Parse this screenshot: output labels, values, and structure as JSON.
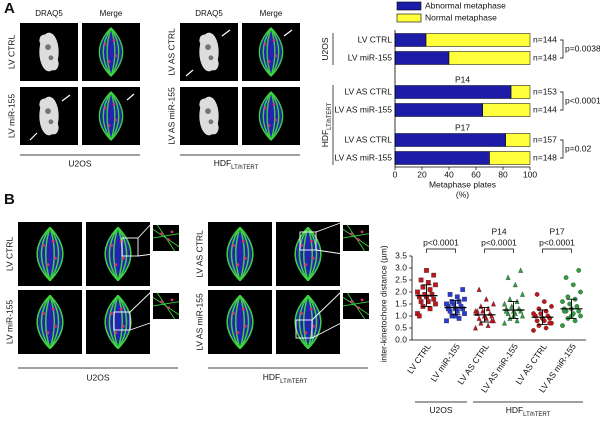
{
  "panels": [
    {
      "label": "A"
    },
    {
      "label": "B"
    }
  ],
  "images_a": {
    "columns": [
      "DRAQ5",
      "Merge",
      "DRAQ5",
      "Merge"
    ],
    "rows_u2os": [
      "LV CTRL",
      "LV miR-155"
    ],
    "rows_hdf": [
      "LV AS CTRL",
      "LV AS miR-155"
    ],
    "cell_lines": [
      {
        "name": "U2OS"
      },
      {
        "name": "HDF",
        "sub": "LT/hTERT"
      }
    ]
  },
  "images_b": {
    "rows_u2os": [
      "LV CTRL",
      "LV miR-155"
    ],
    "rows_hdf": [
      "LV AS CTRL",
      "LV AS miR-155"
    ],
    "cell_lines": [
      {
        "name": "U2OS"
      },
      {
        "name": "HDF",
        "sub": "LT/hTERT"
      }
    ]
  },
  "chart_data": [
    {
      "type": "bar",
      "orientation": "horizontal",
      "stacked": true,
      "categories": [
        "LV CTRL",
        "LV miR-155",
        "LV AS CTRL",
        "LV AS miR-155",
        "LV AS CTRL",
        "LV AS miR-155"
      ],
      "series": [
        {
          "name": "Abnormal metaphase",
          "color": "#1c1ca8",
          "values": [
            23,
            40,
            86,
            65,
            82,
            70
          ]
        },
        {
          "name": "Normal metaphase",
          "color": "#ffff3c",
          "values": [
            77,
            60,
            14,
            35,
            18,
            30
          ]
        }
      ],
      "xlim": [
        0,
        100
      ],
      "xticks": [
        0,
        20,
        40,
        60,
        80,
        100
      ],
      "xlabel": [
        "Metaphase plates",
        "(%)"
      ],
      "n_labels": [
        "n=144",
        "n=148",
        "n=153",
        "n=144",
        "n=157",
        "n=148"
      ],
      "p_labels": [
        "p=0.0038",
        "p<0.0001",
        "p=0.02"
      ],
      "groups": [
        {
          "name": "U2OS"
        },
        {
          "name": "HDF",
          "sub": "LT/hTERT"
        }
      ],
      "subgroups": [
        "P14",
        "P17"
      ],
      "legend": "top"
    },
    {
      "type": "strip",
      "ylabel": "inter-kinetochore distance (µm)",
      "ylim": [
        0,
        3.5
      ],
      "yticks": [
        {
          "value": 0,
          "label": "0.0"
        },
        0.5,
        {
          "value": 1,
          "label": "1.0"
        },
        1.5,
        {
          "value": 2,
          "label": "2.0"
        },
        2.5,
        {
          "value": 3,
          "label": "3.0"
        },
        3.5
      ],
      "categories": [
        "LV CTRL",
        "LV miR-155",
        "LV AS CTRL",
        "LV AS miR-155",
        "LV AS CTRL",
        "LV AS miR-155"
      ],
      "series": [
        {
          "color": "#c0151b",
          "marker": "square",
          "mean": 1.85,
          "sd": 0.45,
          "values": [
            1.1,
            1.3,
            1.4,
            1.5,
            1.6,
            1.6,
            1.7,
            1.8,
            1.8,
            1.9,
            1.9,
            2.0,
            2.1,
            2.2,
            2.3,
            2.4,
            2.5,
            2.7,
            2.9,
            1.0
          ]
        },
        {
          "color": "#2a3bd0",
          "marker": "square",
          "mean": 1.35,
          "sd": 0.3,
          "values": [
            0.8,
            0.9,
            1.0,
            1.1,
            1.2,
            1.2,
            1.3,
            1.3,
            1.4,
            1.4,
            1.5,
            1.5,
            1.6,
            1.6,
            1.7,
            1.8,
            1.9,
            2.1,
            1.0,
            1.3
          ]
        },
        {
          "color": "#c0151b",
          "marker": "triangle",
          "mean": 1.05,
          "sd": 0.3,
          "values": [
            0.5,
            0.6,
            0.7,
            0.8,
            0.9,
            0.9,
            1.0,
            1.0,
            1.1,
            1.1,
            1.2,
            1.2,
            1.3,
            1.4,
            1.5,
            1.7,
            2.1,
            0.8,
            1.0,
            1.2
          ]
        },
        {
          "color": "#2e9e3e",
          "marker": "triangle",
          "mean": 1.25,
          "sd": 0.35,
          "values": [
            0.7,
            0.8,
            0.9,
            1.0,
            1.1,
            1.1,
            1.2,
            1.2,
            1.3,
            1.3,
            1.4,
            1.5,
            1.6,
            1.7,
            1.9,
            2.3,
            2.6,
            2.9,
            1.0,
            1.2
          ]
        },
        {
          "color": "#c0151b",
          "marker": "circle",
          "mean": 0.95,
          "sd": 0.3,
          "values": [
            0.4,
            0.5,
            0.6,
            0.7,
            0.8,
            0.8,
            0.9,
            0.9,
            1.0,
            1.0,
            1.1,
            1.1,
            1.2,
            1.3,
            1.4,
            1.6,
            1.9,
            0.7,
            0.9,
            1.0
          ]
        },
        {
          "color": "#2e9e3e",
          "marker": "circle",
          "mean": 1.3,
          "sd": 0.4,
          "values": [
            0.6,
            0.8,
            0.9,
            1.0,
            1.1,
            1.2,
            1.2,
            1.3,
            1.3,
            1.4,
            1.5,
            1.6,
            1.7,
            1.8,
            2.0,
            2.3,
            2.6,
            2.9,
            1.0,
            1.2
          ]
        }
      ],
      "p_labels": [
        "p<0.0001",
        "p<0.0001",
        "p<0.0001"
      ],
      "groups": [
        {
          "name": "U2OS"
        },
        {
          "name": "HDF",
          "sub": "LT/hTERT"
        }
      ],
      "subgroups": [
        "P14",
        "P17"
      ]
    }
  ]
}
